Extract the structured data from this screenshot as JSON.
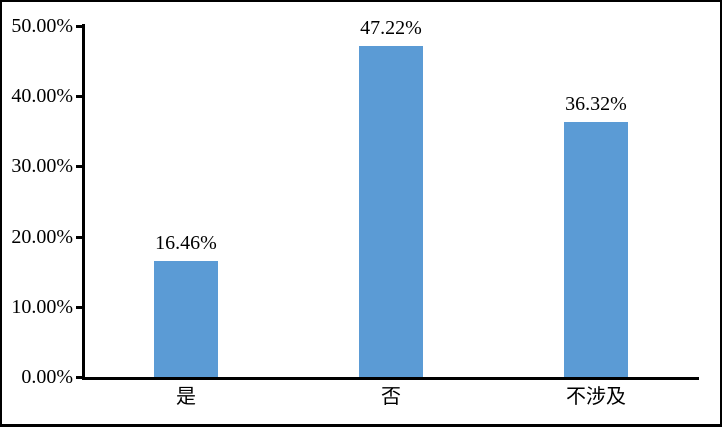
{
  "chart_data": {
    "type": "bar",
    "title": "",
    "xlabel": "",
    "ylabel": "",
    "categories": [
      "是",
      "否",
      "不涉及"
    ],
    "values": [
      16.46,
      47.22,
      36.32
    ],
    "data_labels": [
      "16.46%",
      "47.22%",
      "36.32%"
    ],
    "y_ticks": [
      "0.00%",
      "10.00%",
      "20.00%",
      "30.00%",
      "40.00%",
      "50.00%"
    ],
    "ylim": [
      0,
      50
    ],
    "y_tick_step": 10,
    "grid": false,
    "legend": false,
    "bar_color": "#5B9BD5",
    "axis_color": "#000000",
    "text_color": "#000000",
    "background_color": "#FFFFFF",
    "frame_border_color": "#000000"
  }
}
